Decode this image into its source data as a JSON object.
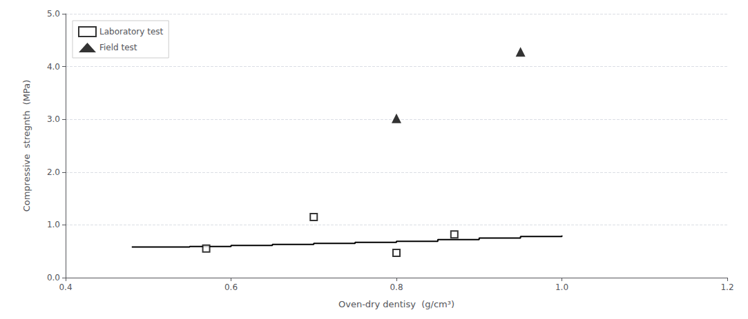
{
  "chart_data": {
    "type": "scatter",
    "x_label": "Oven-dry dentisy  (g/cm³)",
    "y_label": "Compressive  stregnth  (MPa)",
    "xlim": [
      0.4,
      1.2
    ],
    "ylim": [
      0.0,
      5.0
    ],
    "xticks": [
      0.4,
      0.6,
      0.8,
      {
        "value": 1.0,
        "label": "1.0"
      },
      1.2
    ],
    "yticks": [
      {
        "value": 0.0,
        "label": "0.0"
      },
      {
        "value": 1.0,
        "label": "1.0"
      },
      {
        "value": 2.0,
        "label": "2.0"
      },
      {
        "value": 3.0,
        "label": "3.0"
      },
      {
        "value": 4.0,
        "label": "4.0"
      },
      {
        "value": 5.0,
        "label": "5.0"
      }
    ],
    "grid": true,
    "legend": "upper left",
    "series": [
      {
        "type": "line",
        "line_style": "solid",
        "color": "#000000",
        "x": [
          0.48,
          0.55,
          0.6,
          0.65,
          0.7,
          0.75,
          0.8,
          0.85,
          0.9,
          0.95,
          1.0
        ],
        "values": [
          0.58,
          0.59,
          0.61,
          0.63,
          0.65,
          0.67,
          0.69,
          0.72,
          0.75,
          0.78,
          0.8
        ]
      },
      {
        "name": "Laboratory test",
        "type": "scatter",
        "marker": "open_square",
        "color": "#000000",
        "x": [
          0.57,
          0.7,
          0.8,
          0.87
        ],
        "values": [
          0.55,
          1.15,
          0.47,
          0.82
        ]
      },
      {
        "name": "Field test",
        "type": "scatter",
        "marker": "triangle",
        "color": "#000000",
        "x": [
          0.8,
          0.95
        ],
        "values": [
          3.02,
          4.28
        ]
      }
    ]
  }
}
